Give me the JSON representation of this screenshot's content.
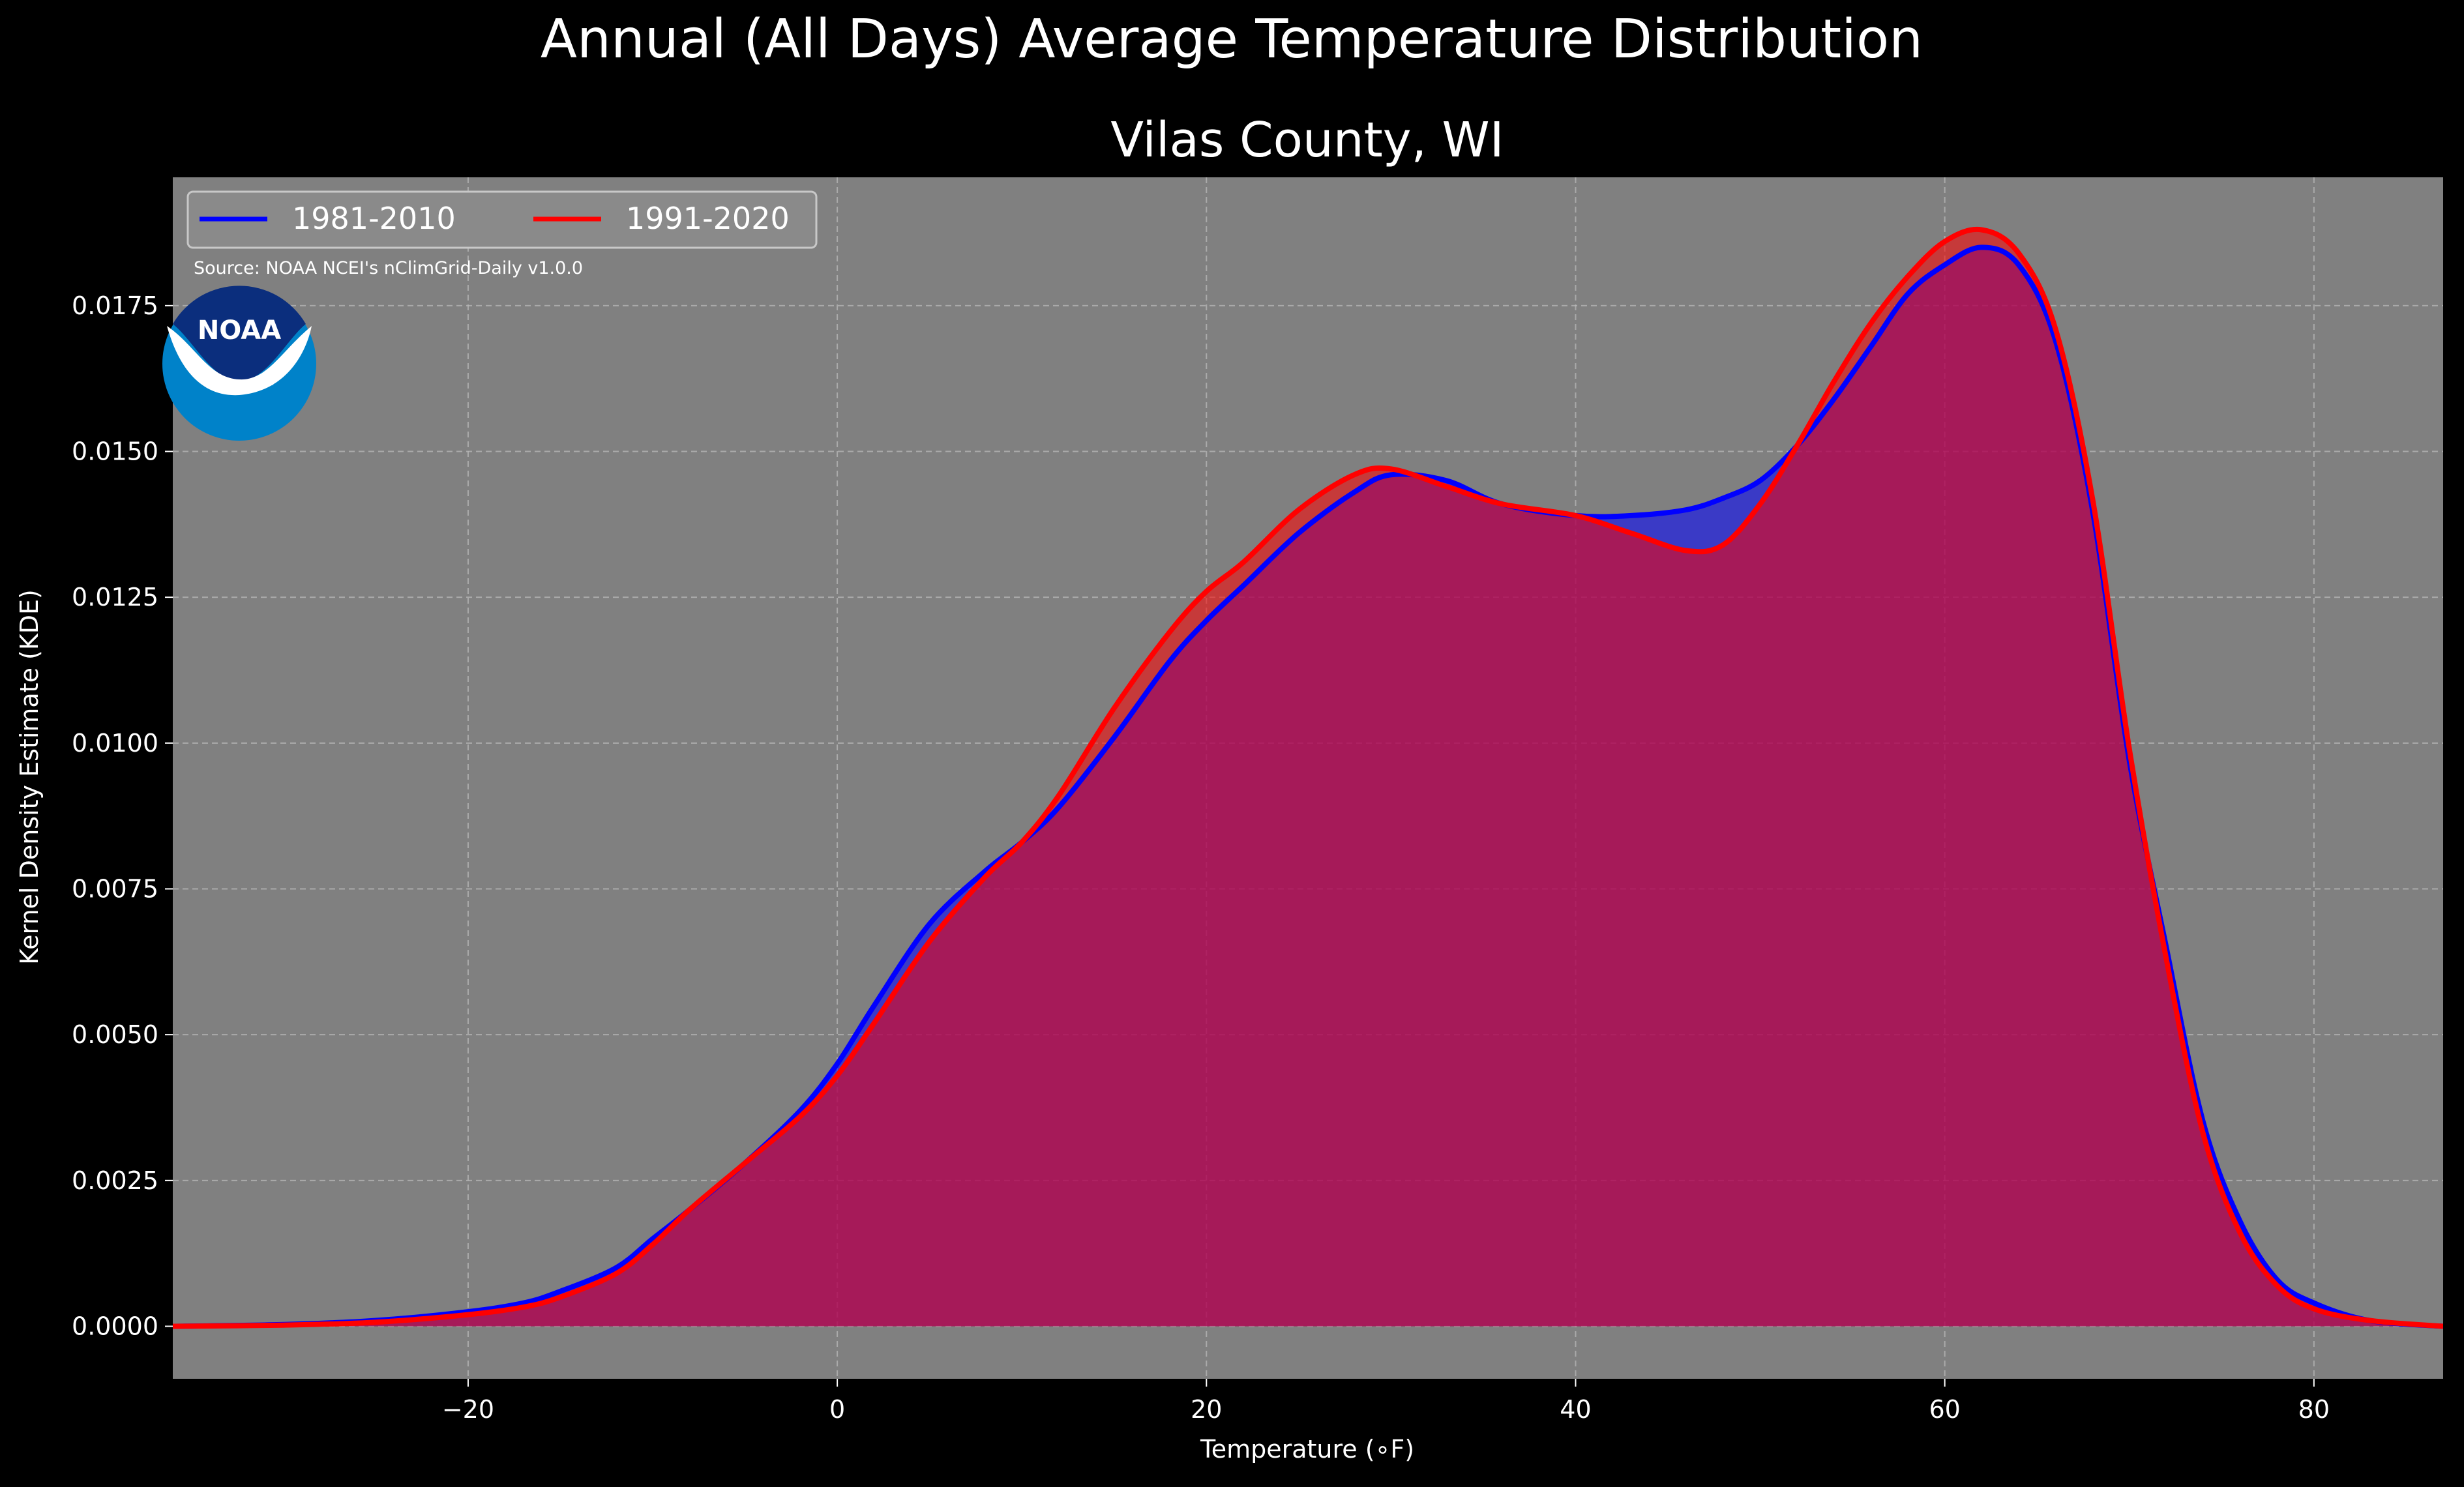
{
  "page": {
    "suptitle": "Annual (All Days) Average Temperature Distribution",
    "subtitle": "Vilas County, WI",
    "source_note": "Source: NOAA NCEI's nClimGrid-Daily v1.0.0",
    "logo_text": "NOAA"
  },
  "colors": {
    "background": "#000000",
    "plot_bg": "#808080",
    "grid": "#b8b8b8",
    "series_1981": "#0000ff",
    "series_1991": "#ff0000",
    "overlap_fill": "#9c1f5c",
    "logo_blue": "#0082c9",
    "logo_navy": "#0b2e7d"
  },
  "chart_data": {
    "type": "area",
    "xlabel": "Temperature ($^\\circ$F)",
    "xlabel_display": "Temperature (∘F)",
    "ylabel": "Kernel Density Estimate (KDE)",
    "xlim": [
      -36,
      87
    ],
    "ylim": [
      -0.0009,
      0.0197
    ],
    "xticks": [
      -20,
      0,
      20,
      40,
      60,
      80
    ],
    "xtick_labels": [
      "−20",
      "0",
      "20",
      "40",
      "60",
      "80"
    ],
    "yticks": [
      0.0,
      0.0025,
      0.005,
      0.0075,
      0.01,
      0.0125,
      0.015,
      0.0175
    ],
    "ytick_labels": [
      "0.0000",
      "0.0025",
      "0.0050",
      "0.0075",
      "0.0100",
      "0.0125",
      "0.0150",
      "0.0175"
    ],
    "grid": true,
    "legend_position": "top-left",
    "series": [
      {
        "name": "1981-2010",
        "color": "#0000ff",
        "x": [
          -36,
          -30,
          -25,
          -20,
          -17,
          -15,
          -12,
          -10,
          -8,
          -5,
          -2,
          0,
          2,
          5,
          8,
          10,
          12,
          15,
          18,
          20,
          22,
          25,
          28,
          30,
          33,
          36,
          40,
          43,
          46,
          48,
          50,
          52,
          54,
          56,
          58,
          60,
          62,
          64,
          66,
          68,
          70,
          72,
          74,
          76,
          78,
          80,
          83,
          87
        ],
        "y": [
          0.0,
          3e-05,
          0.0001,
          0.00025,
          0.0004,
          0.0006,
          0.001,
          0.0015,
          0.002,
          0.0028,
          0.0037,
          0.0045,
          0.0055,
          0.0069,
          0.0078,
          0.0083,
          0.0089,
          0.0101,
          0.0114,
          0.0121,
          0.0127,
          0.0136,
          0.0143,
          0.0146,
          0.0145,
          0.0141,
          0.0139,
          0.0139,
          0.014,
          0.0142,
          0.0145,
          0.0151,
          0.0159,
          0.0168,
          0.0177,
          0.0182,
          0.0185,
          0.0182,
          0.0169,
          0.014,
          0.0097,
          0.0065,
          0.0035,
          0.0018,
          0.0008,
          0.0004,
          0.0001,
          0.0
        ]
      },
      {
        "name": "1991-2020",
        "color": "#ff0000",
        "x": [
          -36,
          -30,
          -25,
          -20,
          -17,
          -15,
          -12,
          -10,
          -8,
          -5,
          -2,
          0,
          2,
          5,
          8,
          10,
          12,
          15,
          18,
          20,
          22,
          25,
          28,
          30,
          33,
          36,
          40,
          43,
          46,
          48,
          50,
          52,
          54,
          56,
          58,
          60,
          62,
          64,
          66,
          68,
          70,
          72,
          74,
          76,
          78,
          80,
          83,
          87
        ],
        "y": [
          0.0,
          2e-05,
          7e-05,
          0.0002,
          0.00033,
          0.0005,
          0.0009,
          0.0014,
          0.002,
          0.0028,
          0.0036,
          0.0043,
          0.0052,
          0.0066,
          0.0077,
          0.0083,
          0.0091,
          0.0106,
          0.0119,
          0.0126,
          0.0131,
          0.014,
          0.0146,
          0.0147,
          0.0144,
          0.0141,
          0.0139,
          0.0136,
          0.0133,
          0.0134,
          0.0141,
          0.0151,
          0.0162,
          0.0172,
          0.018,
          0.0186,
          0.0188,
          0.0184,
          0.0171,
          0.0142,
          0.0099,
          0.0063,
          0.0033,
          0.0016,
          0.0007,
          0.0003,
          0.0001,
          0.0
        ]
      }
    ]
  }
}
